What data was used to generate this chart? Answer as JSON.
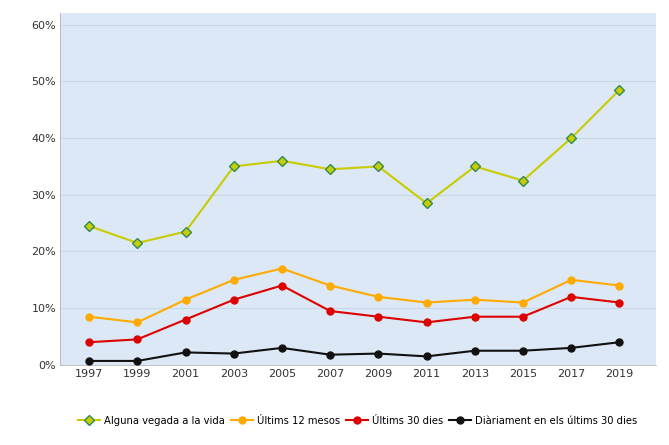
{
  "years": [
    1997,
    1999,
    2001,
    2003,
    2005,
    2007,
    2009,
    2011,
    2013,
    2015,
    2017,
    2019
  ],
  "alguna_vegada": [
    24.5,
    21.5,
    23.5,
    35.0,
    36.0,
    34.5,
    35.0,
    28.5,
    35.0,
    32.5,
    40.0,
    48.5
  ],
  "ultims_12_mesos": [
    8.5,
    7.5,
    11.5,
    15.0,
    17.0,
    14.0,
    12.0,
    11.0,
    11.5,
    11.0,
    15.0,
    14.0
  ],
  "ultims_30_dies": [
    4.0,
    4.5,
    8.0,
    11.5,
    14.0,
    9.5,
    8.5,
    7.5,
    8.5,
    8.5,
    12.0,
    11.0
  ],
  "diariament": [
    0.7,
    0.7,
    2.2,
    2.0,
    3.0,
    1.8,
    2.0,
    1.5,
    2.5,
    2.5,
    3.0,
    4.0
  ],
  "color_alguna_line": "#c8cc00",
  "color_alguna_marker_face": "#c8cc00",
  "color_alguna_marker_edge": "#2e8b57",
  "color_12mesos": "#ffaa00",
  "color_30dies": "#dd0000",
  "color_diari": "#111111",
  "legend_labels": [
    "Alguna vegada a la vida",
    "ÚItims 12 mesos",
    "ÚItims 30 dies",
    "Diàriament en els últims 30 dies"
  ],
  "ylim": [
    0,
    62
  ],
  "yticks": [
    0,
    10,
    20,
    30,
    40,
    50,
    60
  ],
  "ytick_labels": [
    "0%",
    "10%",
    "20%",
    "30%",
    "40%",
    "50%",
    "60%"
  ],
  "plot_bg_color": "#dce8f5",
  "fig_bg_color": "#ffffff",
  "grid_color": "#c8d8e8",
  "linewidth": 1.5,
  "markersize": 5
}
